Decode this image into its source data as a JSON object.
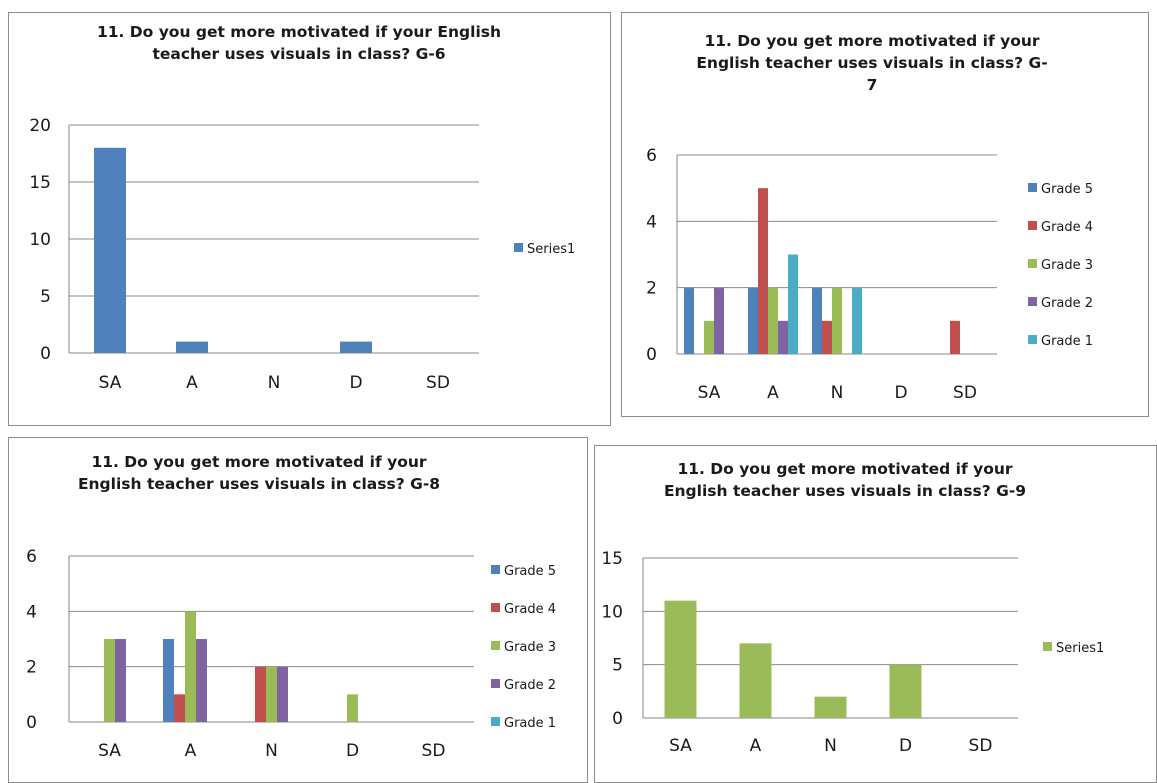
{
  "chart_data": [
    {
      "type": "bar",
      "title": "11.  Do you get more motivated if your English teacher uses visuals in class? G-6",
      "title_lines": [
        "11.  Do you get more motivated if your English",
        "teacher uses visuals in class? G-6"
      ],
      "categories": [
        "SA",
        "A",
        "N",
        "D",
        "SD"
      ],
      "ylim": [
        0,
        20
      ],
      "yticks": [
        0,
        5,
        10,
        15,
        20
      ],
      "grid": true,
      "legend_position": "right",
      "series": [
        {
          "name": "Series1",
          "color": "#4f81bd",
          "values": [
            18,
            1,
            0,
            1,
            0
          ]
        }
      ]
    },
    {
      "type": "bar",
      "title": "11.  Do you get more motivated if your English teacher uses visuals in class?  G-7",
      "title_lines": [
        "11.  Do you get more motivated if your",
        "English teacher uses visuals in class?  G-",
        "7"
      ],
      "categories": [
        "SA",
        "A",
        "N",
        "D",
        "SD"
      ],
      "ylim": [
        0,
        6
      ],
      "yticks": [
        0,
        2,
        4,
        6
      ],
      "grid": true,
      "legend_position": "right",
      "series": [
        {
          "name": "Grade 5",
          "color": "#4f81bd",
          "values": [
            2,
            2,
            2,
            0,
            0
          ]
        },
        {
          "name": "Grade 4",
          "color": "#c0504d",
          "values": [
            0,
            5,
            1,
            0,
            1
          ]
        },
        {
          "name": "Grade 3",
          "color": "#9bbb59",
          "values": [
            1,
            2,
            2,
            0,
            0
          ]
        },
        {
          "name": "Grade 2",
          "color": "#8064a2",
          "values": [
            2,
            1,
            0,
            0,
            0
          ]
        },
        {
          "name": "Grade 1",
          "color": "#4bacc6",
          "values": [
            0,
            3,
            2,
            0,
            0
          ]
        }
      ]
    },
    {
      "type": "bar",
      "title": "11.  Do you get more motivated if your English teacher uses visuals in class?  G-8",
      "title_lines": [
        "11.  Do you get more motivated if your",
        "English teacher uses visuals in class?  G-8"
      ],
      "categories": [
        "SA",
        "A",
        "N",
        "D",
        "SD"
      ],
      "ylim": [
        0,
        6
      ],
      "yticks": [
        0,
        2,
        4,
        6
      ],
      "grid": true,
      "legend_position": "right",
      "series": [
        {
          "name": "Grade 5",
          "color": "#4f81bd",
          "values": [
            0,
            3,
            0,
            0,
            0
          ]
        },
        {
          "name": "Grade 4",
          "color": "#c0504d",
          "values": [
            0,
            1,
            2,
            0,
            0
          ]
        },
        {
          "name": "Grade 3",
          "color": "#9bbb59",
          "values": [
            3,
            4,
            2,
            1,
            0
          ]
        },
        {
          "name": "Grade 2",
          "color": "#8064a2",
          "values": [
            3,
            3,
            2,
            0,
            0
          ]
        },
        {
          "name": "Grade 1",
          "color": "#4bacc6",
          "values": [
            0,
            0,
            0,
            0,
            0
          ]
        }
      ]
    },
    {
      "type": "bar",
      "title": "11.  Do you get more motivated if your English teacher uses visuals in class?  G-9",
      "title_lines": [
        "11.  Do you get more motivated if your",
        "English teacher uses visuals in class?  G-9"
      ],
      "categories": [
        "SA",
        "A",
        "N",
        "D",
        "SD"
      ],
      "ylim": [
        0,
        15
      ],
      "yticks": [
        0,
        5,
        10,
        15
      ],
      "grid": true,
      "legend_position": "right",
      "series": [
        {
          "name": "Series1",
          "color": "#9bbb59",
          "values": [
            11,
            7,
            2,
            5,
            0
          ]
        }
      ]
    }
  ]
}
